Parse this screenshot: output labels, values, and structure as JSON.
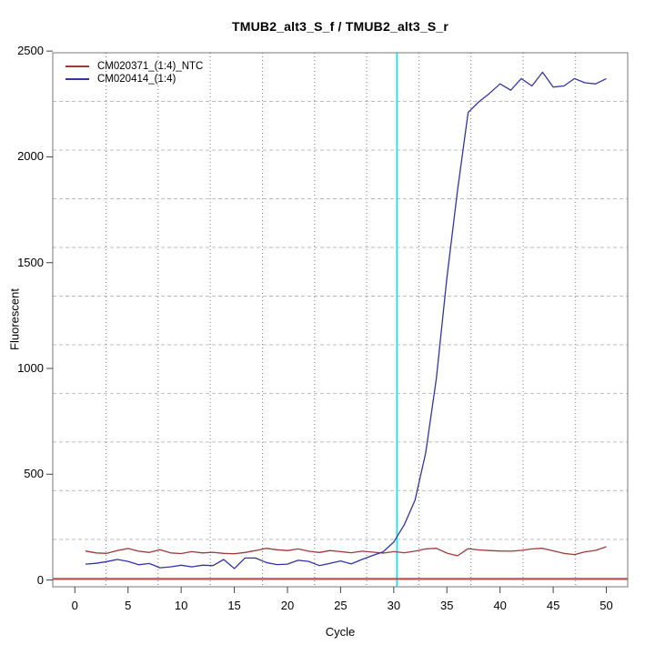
{
  "title": "TMUB2_alt3_S_f / TMUB2_alt3_S_r",
  "background": "#ffffff",
  "chart_data": {
    "type": "line",
    "title": "TMUB2_alt3_S_f / TMUB2_alt3_S_r",
    "xlabel": "Cycle",
    "ylabel": "Fluorescent",
    "xlim": [
      -2.08,
      52.01
    ],
    "ylim": [
      -32,
      2492
    ],
    "xticks": [
      0,
      5,
      10,
      15,
      20,
      25,
      30,
      35,
      40,
      45,
      50
    ],
    "yticks": [
      0,
      500,
      1000,
      1500,
      2000,
      2500
    ],
    "x": [
      1,
      2,
      3,
      4,
      5,
      6,
      7,
      8,
      9,
      10,
      11,
      12,
      13,
      14,
      15,
      16,
      17,
      18,
      19,
      20,
      21,
      22,
      23,
      24,
      25,
      26,
      27,
      28,
      29,
      30,
      31,
      32,
      33,
      34,
      35,
      36,
      37,
      38,
      39,
      40,
      41,
      42,
      43,
      44,
      45,
      46,
      47,
      48,
      49,
      50
    ],
    "series": [
      {
        "name": "CM020371_(1:4)_NTC",
        "color": "#9e3a3a",
        "values": [
          137,
          128,
          126,
          139,
          149,
          136,
          130,
          143,
          128,
          125,
          134,
          128,
          131,
          126,
          124,
          130,
          139,
          150,
          143,
          139,
          147,
          136,
          130,
          139,
          134,
          129,
          136,
          132,
          127,
          134,
          129,
          136,
          147,
          150,
          127,
          114,
          148,
          142,
          139,
          137,
          136,
          140,
          147,
          150,
          138,
          126,
          120,
          133,
          140,
          157
        ]
      },
      {
        "name": "CM020414_(1:4)",
        "color": "#3434a4",
        "values": [
          75,
          79,
          87,
          97,
          88,
          72,
          78,
          58,
          62,
          70,
          62,
          70,
          68,
          97,
          54,
          104,
          104,
          83,
          73,
          75,
          93,
          88,
          68,
          79,
          90,
          76,
          97,
          116,
          133,
          179,
          262,
          377,
          600,
          950,
          1430,
          1840,
          2210,
          2260,
          2300,
          2345,
          2315,
          2370,
          2335,
          2400,
          2330,
          2335,
          2370,
          2350,
          2345,
          2370
        ]
      }
    ],
    "threshold_vline": {
      "cycle": 30.3,
      "color": "#00e8ee"
    },
    "baseline_hline": {
      "value": 5,
      "color": "#b85555"
    },
    "grid": {
      "vertical_x": [
        2.93,
        7.83,
        12.74,
        17.64,
        22.55,
        27.45,
        32.36,
        37.26,
        42.17,
        47.07
      ],
      "horizontal_y": [
        192,
        422,
        652,
        882,
        1112,
        1342,
        1572,
        1802,
        2032,
        2262
      ]
    },
    "legend_position": "top-left",
    "grid_on": true
  }
}
